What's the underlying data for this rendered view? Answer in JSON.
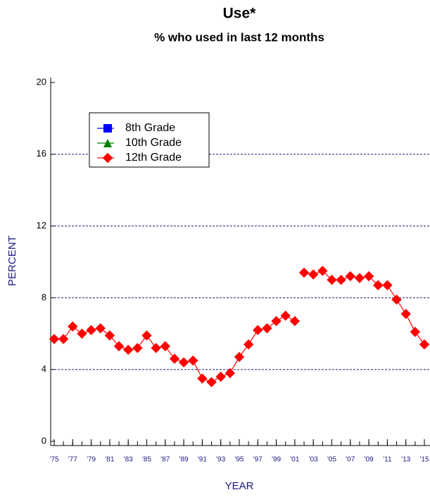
{
  "chart_data": {
    "type": "line",
    "title": "Use*",
    "subtitle": "% who used in last 12 months",
    "xlabel": "YEAR",
    "ylabel": "PERCENT",
    "x": [
      1975,
      1976,
      1977,
      1978,
      1979,
      1980,
      1981,
      1982,
      1983,
      1984,
      1985,
      1986,
      1987,
      1988,
      1989,
      1990,
      1991,
      1992,
      1993,
      1994,
      1995,
      1996,
      1997,
      1998,
      1999,
      2000,
      2001,
      2002,
      2003,
      2004,
      2005,
      2006,
      2007,
      2008,
      2009,
      2010,
      2011,
      2012,
      2013,
      2014,
      2015
    ],
    "series": [
      {
        "name": "8th Grade",
        "color": "#0000ff",
        "marker": "square",
        "values": [
          null,
          null,
          null,
          null,
          null,
          null,
          null,
          null,
          null,
          null,
          null,
          null,
          null,
          null,
          null,
          null,
          null,
          null,
          null,
          null,
          null,
          null,
          null,
          null,
          null,
          null,
          null,
          null,
          null,
          null,
          null,
          null,
          null,
          null,
          null,
          null,
          null,
          null,
          null,
          null,
          null
        ]
      },
      {
        "name": "10th Grade",
        "color": "#008000",
        "marker": "triangle",
        "values": [
          null,
          null,
          null,
          null,
          null,
          null,
          null,
          null,
          null,
          null,
          null,
          null,
          null,
          null,
          null,
          null,
          null,
          null,
          null,
          null,
          null,
          null,
          null,
          null,
          null,
          null,
          null,
          null,
          null,
          null,
          null,
          null,
          null,
          null,
          null,
          null,
          null,
          null,
          null,
          null,
          null
        ]
      },
      {
        "name": "12th Grade",
        "color": "#ff0000",
        "marker": "diamond",
        "values": [
          5.7,
          5.7,
          6.4,
          6.0,
          6.2,
          6.3,
          5.9,
          5.3,
          5.1,
          5.2,
          5.9,
          5.2,
          5.3,
          4.6,
          4.4,
          4.5,
          3.5,
          3.3,
          3.6,
          3.8,
          4.7,
          5.4,
          6.2,
          6.3,
          6.7,
          7.0,
          6.7,
          9.4,
          9.3,
          9.5,
          9.0,
          9.0,
          9.2,
          9.1,
          9.2,
          8.7,
          8.7,
          7.9,
          7.1,
          6.1,
          5.4
        ]
      }
    ],
    "line_breaks_after": [
      2001
    ],
    "xlim": [
      1975,
      2015
    ],
    "xticks": [
      {
        "value": 1975,
        "label": "'75"
      },
      {
        "value": 1977,
        "label": "'77"
      },
      {
        "value": 1979,
        "label": "'79"
      },
      {
        "value": 1981,
        "label": "'81"
      },
      {
        "value": 1983,
        "label": "'83"
      },
      {
        "value": 1985,
        "label": "'85"
      },
      {
        "value": 1987,
        "label": "'87"
      },
      {
        "value": 1989,
        "label": "'89"
      },
      {
        "value": 1991,
        "label": "'91"
      },
      {
        "value": 1993,
        "label": "'93"
      },
      {
        "value": 1995,
        "label": "'95"
      },
      {
        "value": 1997,
        "label": "'97"
      },
      {
        "value": 1999,
        "label": "'99"
      },
      {
        "value": 2001,
        "label": "'01"
      },
      {
        "value": 2003,
        "label": "'03"
      },
      {
        "value": 2005,
        "label": "'05"
      },
      {
        "value": 2007,
        "label": "'07"
      },
      {
        "value": 2009,
        "label": "'09"
      },
      {
        "value": 2011,
        "label": "'11"
      },
      {
        "value": 2013,
        "label": "'13"
      },
      {
        "value": 2015,
        "label": "'15"
      }
    ],
    "xticks_minor": [
      1975,
      1976,
      1977,
      1978,
      1979,
      1980,
      1981,
      1982,
      1983,
      1984,
      1985,
      1986,
      1987,
      1988,
      1989,
      1990,
      1991,
      1992,
      1993,
      1994,
      1995,
      1996,
      1997,
      1998,
      1999,
      2000,
      2001,
      2002,
      2003,
      2004,
      2005,
      2006,
      2007,
      2008,
      2009,
      2010,
      2011,
      2012,
      2013,
      2014,
      2015
    ],
    "ylim": [
      0,
      20
    ],
    "yticks": [
      0,
      4,
      8,
      12,
      16,
      20
    ],
    "grid": "dashed",
    "legend": "upper left"
  }
}
